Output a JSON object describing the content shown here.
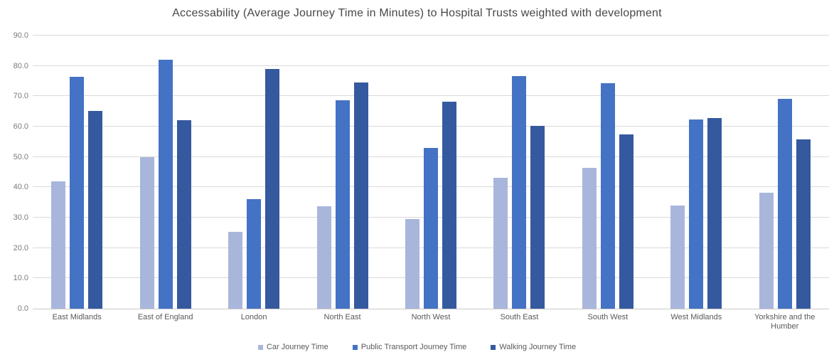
{
  "chart_data": {
    "type": "bar",
    "title": "Accessability (Average Journey Time in Minutes) to Hospital Trusts weighted with development",
    "xlabel": "",
    "ylabel": "",
    "categories": [
      "East Midlands",
      "East of England",
      "London",
      "North East",
      "North West",
      "South East",
      "South West",
      "West Midlands",
      "Yorkshire and the Humber"
    ],
    "series": [
      {
        "name": "Car Journey Time",
        "color": "#a9b6db",
        "values": [
          42.0,
          50.0,
          25.2,
          33.7,
          29.6,
          43.2,
          46.3,
          33.9,
          38.1
        ]
      },
      {
        "name": "Public Transport Journey Time",
        "color": "#4472c4",
        "values": [
          76.4,
          82.0,
          36.0,
          68.6,
          52.9,
          76.6,
          74.3,
          62.4,
          69.1
        ]
      },
      {
        "name": "Walking Journey Time",
        "color": "#35599e",
        "values": [
          65.2,
          62.0,
          78.9,
          74.5,
          68.1,
          60.3,
          57.5,
          62.9,
          55.7
        ]
      }
    ],
    "ylim": [
      0,
      90
    ],
    "ytick_step": 10,
    "ytick_decimals": 1,
    "grid": true,
    "legend_position": "bottom"
  },
  "styles": {
    "background": "#ffffff",
    "grid_color": "#d9d9d9",
    "baseline_color": "#c9c9c9",
    "tick_label_color": "#7b7b7b",
    "category_label_color": "#595959",
    "title_color": "#474747"
  }
}
